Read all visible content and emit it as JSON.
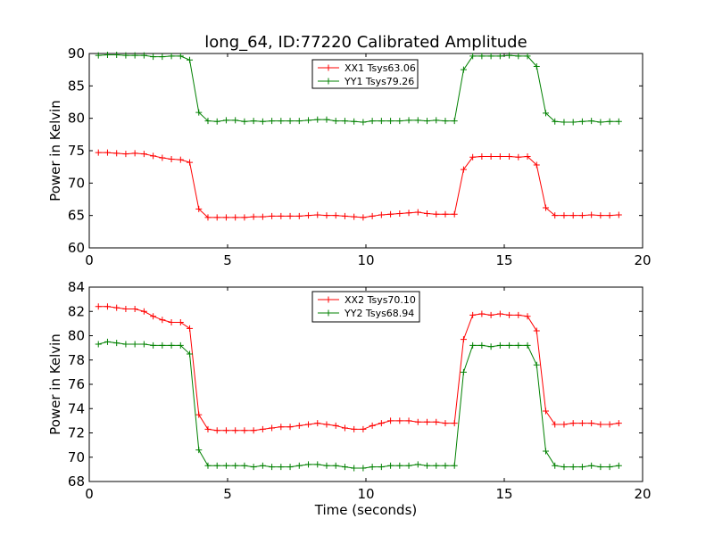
{
  "figure": {
    "title": "long_64, ID:77220 Calibrated Amplitude"
  },
  "chart_data": [
    {
      "type": "line",
      "title": "long_64, ID:77220 Calibrated Amplitude",
      "xlabel": "",
      "ylabel": "Power in Kelvin",
      "xlim": [
        0,
        20
      ],
      "ylim": [
        60,
        90
      ],
      "xticks": [
        "0",
        "5",
        "10",
        "15",
        "20"
      ],
      "yticks": [
        "60",
        "65",
        "70",
        "75",
        "80",
        "85",
        "90"
      ],
      "grid": false,
      "legend_position": "top-center",
      "x": [
        0.33,
        0.66,
        0.99,
        1.32,
        1.65,
        1.98,
        2.31,
        2.64,
        2.97,
        3.3,
        3.63,
        3.96,
        4.29,
        4.62,
        4.95,
        5.28,
        5.61,
        5.94,
        6.27,
        6.6,
        6.93,
        7.26,
        7.59,
        7.92,
        8.25,
        8.58,
        8.91,
        9.24,
        9.57,
        9.9,
        10.23,
        10.56,
        10.89,
        11.22,
        11.55,
        11.88,
        12.21,
        12.54,
        12.87,
        13.2,
        13.53,
        13.86,
        14.19,
        14.52,
        14.85,
        15.18,
        15.51,
        15.84,
        16.17,
        16.5,
        16.83,
        17.16,
        17.49,
        17.82,
        18.15,
        18.48,
        18.81,
        19.14
      ],
      "series": [
        {
          "name": "XX1 Tsys63.06",
          "color": "#ff0000",
          "values": [
            74.7,
            74.7,
            74.6,
            74.5,
            74.6,
            74.5,
            74.2,
            73.9,
            73.7,
            73.6,
            73.2,
            66.0,
            64.7,
            64.7,
            64.7,
            64.7,
            64.7,
            64.8,
            64.8,
            64.9,
            64.9,
            64.9,
            64.9,
            65.0,
            65.1,
            65.0,
            65.0,
            64.9,
            64.8,
            64.7,
            64.9,
            65.1,
            65.2,
            65.3,
            65.4,
            65.5,
            65.3,
            65.2,
            65.2,
            65.2,
            72.1,
            74.0,
            74.1,
            74.1,
            74.1,
            74.1,
            74.0,
            74.1,
            72.8,
            66.2,
            65.0,
            65.0,
            65.0,
            65.0,
            65.1,
            65.0,
            65.0,
            65.1
          ]
        },
        {
          "name": "YY1 Tsys79.26",
          "color": "#008000",
          "values": [
            89.7,
            89.8,
            89.8,
            89.7,
            89.7,
            89.7,
            89.5,
            89.5,
            89.6,
            89.6,
            89.0,
            80.9,
            79.6,
            79.5,
            79.7,
            79.7,
            79.5,
            79.6,
            79.5,
            79.6,
            79.6,
            79.6,
            79.6,
            79.7,
            79.8,
            79.8,
            79.6,
            79.6,
            79.5,
            79.4,
            79.6,
            79.6,
            79.6,
            79.6,
            79.7,
            79.7,
            79.6,
            79.7,
            79.6,
            79.6,
            87.5,
            89.6,
            89.6,
            89.6,
            89.6,
            89.7,
            89.6,
            89.6,
            88.0,
            80.8,
            79.5,
            79.4,
            79.4,
            79.5,
            79.6,
            79.4,
            79.5,
            79.5
          ]
        }
      ]
    },
    {
      "type": "line",
      "title": "",
      "xlabel": "Time (seconds)",
      "ylabel": "Power in Kelvin",
      "xlim": [
        0,
        20
      ],
      "ylim": [
        68,
        84
      ],
      "xticks": [
        "0",
        "5",
        "10",
        "15",
        "20"
      ],
      "yticks": [
        "68",
        "70",
        "72",
        "74",
        "76",
        "78",
        "80",
        "82",
        "84"
      ],
      "grid": false,
      "legend_position": "top-center",
      "x": [
        0.33,
        0.66,
        0.99,
        1.32,
        1.65,
        1.98,
        2.31,
        2.64,
        2.97,
        3.3,
        3.63,
        3.96,
        4.29,
        4.62,
        4.95,
        5.28,
        5.61,
        5.94,
        6.27,
        6.6,
        6.93,
        7.26,
        7.59,
        7.92,
        8.25,
        8.58,
        8.91,
        9.24,
        9.57,
        9.9,
        10.23,
        10.56,
        10.89,
        11.22,
        11.55,
        11.88,
        12.21,
        12.54,
        12.87,
        13.2,
        13.53,
        13.86,
        14.19,
        14.52,
        14.85,
        15.18,
        15.51,
        15.84,
        16.17,
        16.5,
        16.83,
        17.16,
        17.49,
        17.82,
        18.15,
        18.48,
        18.81,
        19.14
      ],
      "series": [
        {
          "name": "XX2 Tsys70.10",
          "color": "#ff0000",
          "values": [
            82.4,
            82.4,
            82.3,
            82.2,
            82.2,
            82.0,
            81.6,
            81.3,
            81.1,
            81.1,
            80.6,
            73.5,
            72.3,
            72.2,
            72.2,
            72.2,
            72.2,
            72.2,
            72.3,
            72.4,
            72.5,
            72.5,
            72.6,
            72.7,
            72.8,
            72.7,
            72.6,
            72.4,
            72.3,
            72.3,
            72.6,
            72.8,
            73.0,
            73.0,
            73.0,
            72.9,
            72.9,
            72.9,
            72.8,
            72.8,
            79.7,
            81.7,
            81.8,
            81.7,
            81.8,
            81.7,
            81.7,
            81.6,
            80.4,
            73.8,
            72.7,
            72.7,
            72.8,
            72.8,
            72.8,
            72.7,
            72.7,
            72.8
          ]
        },
        {
          "name": "YY2 Tsys68.94",
          "color": "#008000",
          "values": [
            79.3,
            79.5,
            79.4,
            79.3,
            79.3,
            79.3,
            79.2,
            79.2,
            79.2,
            79.2,
            78.5,
            70.6,
            69.3,
            69.3,
            69.3,
            69.3,
            69.3,
            69.2,
            69.3,
            69.2,
            69.2,
            69.2,
            69.3,
            69.4,
            69.4,
            69.3,
            69.3,
            69.2,
            69.1,
            69.1,
            69.2,
            69.2,
            69.3,
            69.3,
            69.3,
            69.4,
            69.3,
            69.3,
            69.3,
            69.3,
            77.0,
            79.2,
            79.2,
            79.1,
            79.2,
            79.2,
            79.2,
            79.2,
            77.6,
            70.5,
            69.3,
            69.2,
            69.2,
            69.2,
            69.3,
            69.2,
            69.2,
            69.3
          ]
        }
      ]
    }
  ]
}
